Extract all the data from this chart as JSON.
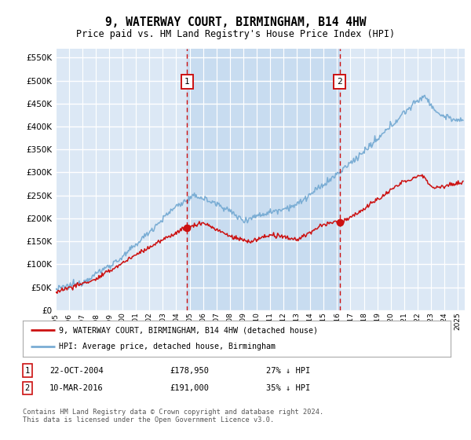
{
  "title": "9, WATERWAY COURT, BIRMINGHAM, B14 4HW",
  "subtitle": "Price paid vs. HM Land Registry's House Price Index (HPI)",
  "ylabel_ticks": [
    "£0",
    "£50K",
    "£100K",
    "£150K",
    "£200K",
    "£250K",
    "£300K",
    "£350K",
    "£400K",
    "£450K",
    "£500K",
    "£550K"
  ],
  "ylabel_values": [
    0,
    50000,
    100000,
    150000,
    200000,
    250000,
    300000,
    350000,
    400000,
    450000,
    500000,
    550000
  ],
  "ylim": [
    0,
    570000
  ],
  "xlim_start": 1995.0,
  "xlim_end": 2025.5,
  "background_color": "#dce8f5",
  "plot_bg_color": "#dce8f5",
  "grid_color": "#ffffff",
  "shade_color": "#c8dcf0",
  "hpi_line_color": "#7aadd4",
  "price_line_color": "#cc1111",
  "marker1_x": 2004.81,
  "marker1_y": 178950,
  "marker2_x": 2016.19,
  "marker2_y": 191000,
  "marker1_label": "1",
  "marker2_label": "2",
  "legend_line1": "9, WATERWAY COURT, BIRMINGHAM, B14 4HW (detached house)",
  "legend_line2": "HPI: Average price, detached house, Birmingham",
  "table_row1": [
    "1",
    "22-OCT-2004",
    "£178,950",
    "27% ↓ HPI"
  ],
  "table_row2": [
    "2",
    "10-MAR-2016",
    "£191,000",
    "35% ↓ HPI"
  ],
  "footer": "Contains HM Land Registry data © Crown copyright and database right 2024.\nThis data is licensed under the Open Government Licence v3.0.",
  "xtick_years": [
    1995,
    1996,
    1997,
    1998,
    1999,
    2000,
    2001,
    2002,
    2003,
    2004,
    2005,
    2006,
    2007,
    2008,
    2009,
    2010,
    2011,
    2012,
    2013,
    2014,
    2015,
    2016,
    2017,
    2018,
    2019,
    2020,
    2021,
    2022,
    2023,
    2024,
    2025
  ]
}
